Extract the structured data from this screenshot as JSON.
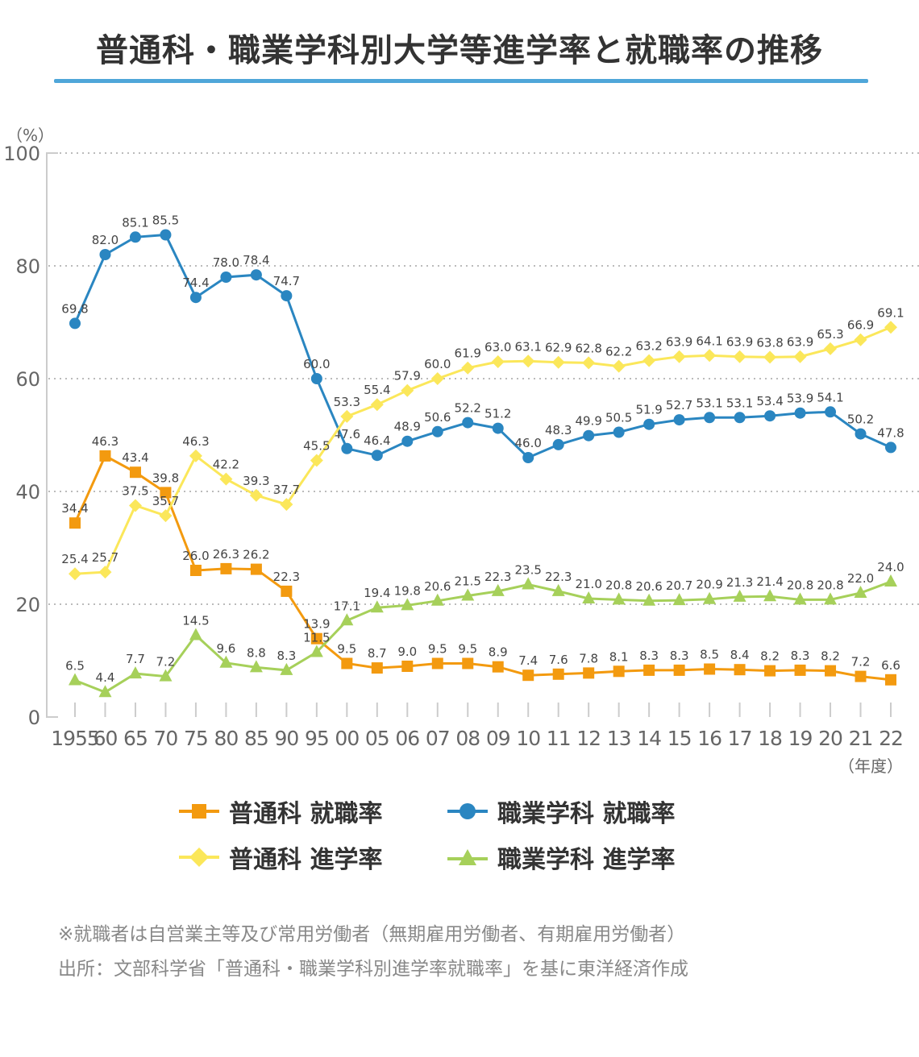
{
  "chart_data": {
    "type": "line",
    "title": "普通科・職業学科別大学等進学率と就職率の推移",
    "ylabel": "（%）",
    "xlabel": "（年度）",
    "ylim": [
      0,
      100
    ],
    "yticks": [
      0,
      20,
      40,
      60,
      80,
      100
    ],
    "grid": true,
    "legend_position": "bottom",
    "categories": [
      "1955",
      "60",
      "65",
      "70",
      "75",
      "80",
      "85",
      "90",
      "95",
      "00",
      "05",
      "06",
      "07",
      "08",
      "09",
      "10",
      "11",
      "12",
      "13",
      "14",
      "15",
      "16",
      "17",
      "18",
      "19",
      "20",
      "21",
      "22"
    ],
    "series": [
      {
        "name": "普通科 就職率",
        "color": "#f39a0f",
        "marker": "square",
        "values": [
          34.4,
          46.3,
          43.4,
          39.8,
          26.0,
          26.3,
          26.2,
          22.3,
          13.9,
          9.5,
          8.7,
          9.0,
          9.5,
          9.5,
          8.9,
          7.4,
          7.6,
          7.8,
          8.1,
          8.3,
          8.3,
          8.5,
          8.4,
          8.2,
          8.3,
          8.2,
          7.2,
          6.6
        ]
      },
      {
        "name": "職業学科 就職率",
        "color": "#2a86c1",
        "marker": "circle",
        "values": [
          69.8,
          82.0,
          85.1,
          85.5,
          74.4,
          78.0,
          78.4,
          74.7,
          60.0,
          47.6,
          46.4,
          48.9,
          50.6,
          52.2,
          51.2,
          46.0,
          48.3,
          49.9,
          50.5,
          51.9,
          52.7,
          53.1,
          53.1,
          53.4,
          53.9,
          54.1,
          50.2,
          47.8
        ]
      },
      {
        "name": "普通科 進学率",
        "color": "#fbe75a",
        "marker": "diamond",
        "values": [
          25.4,
          25.7,
          37.5,
          35.7,
          46.3,
          42.2,
          39.3,
          37.7,
          45.5,
          53.3,
          55.4,
          57.9,
          60.0,
          61.9,
          63.0,
          63.1,
          62.9,
          62.8,
          62.2,
          63.2,
          63.9,
          64.1,
          63.9,
          63.8,
          63.9,
          65.3,
          66.9,
          69.1
        ]
      },
      {
        "name": "職業学科 進学率",
        "color": "#a6d05a",
        "marker": "triangle",
        "values": [
          6.5,
          4.4,
          7.7,
          7.2,
          14.5,
          9.6,
          8.8,
          8.3,
          11.5,
          17.1,
          19.4,
          19.8,
          20.6,
          21.5,
          22.3,
          23.5,
          22.3,
          21.0,
          20.8,
          20.6,
          20.7,
          20.9,
          21.3,
          21.4,
          20.8,
          20.8,
          22.0,
          24.0
        ]
      }
    ]
  },
  "notes": [
    "※就職者は自営業主等及び常用労働者（無期雇用労働者、有期雇用労働者）",
    "出所：文部科学省「普通科・職業学科別進学率就職率」を基に東洋経済作成"
  ]
}
